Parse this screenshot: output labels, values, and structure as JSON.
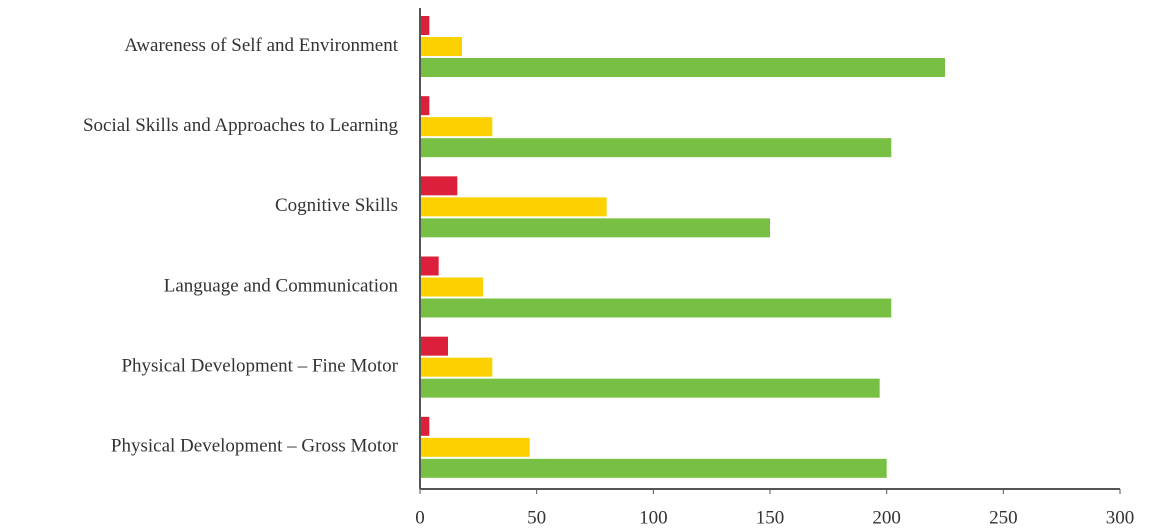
{
  "chart_data": {
    "type": "bar",
    "orientation": "horizontal",
    "categories": [
      "Awareness of Self and Environment",
      "Social Skills and Approaches to Learning",
      "Cognitive Skills",
      "Language and Communication",
      "Physical Development – Fine Motor",
      "Physical Development – Gross Motor"
    ],
    "series": [
      {
        "color": "#dc1f3a",
        "values": [
          4,
          4,
          16,
          8,
          12,
          4
        ]
      },
      {
        "color": "#fdd000",
        "values": [
          18,
          31,
          80,
          27,
          31,
          47
        ]
      },
      {
        "color": "#77c043",
        "values": [
          225,
          202,
          150,
          202,
          197,
          200
        ]
      }
    ],
    "xlim": [
      0,
      300
    ],
    "xticks": [
      0,
      50,
      100,
      150,
      200,
      250,
      300
    ],
    "grid": false
  }
}
